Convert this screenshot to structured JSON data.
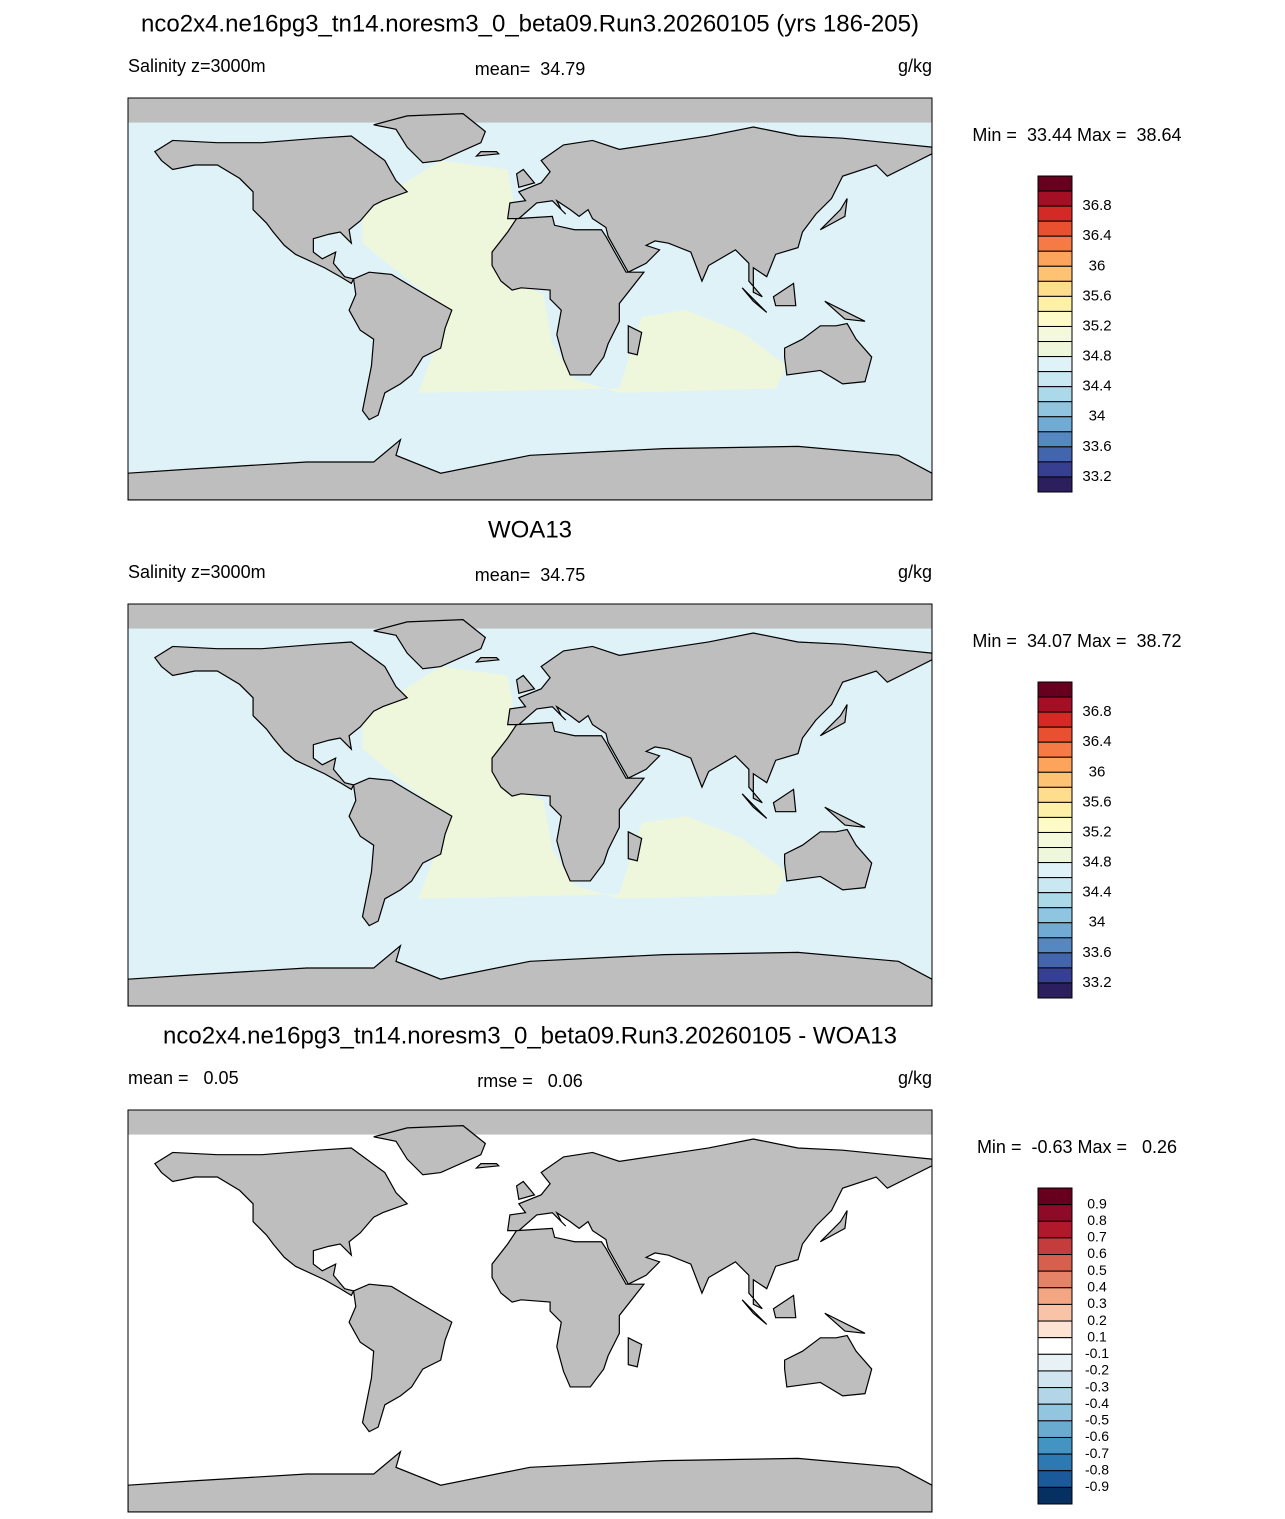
{
  "panels": [
    {
      "heading": "nco2x4.ne16pg3_tn14.noresm3_0_beta09.Run3.20260105 (yrs 186-205)",
      "left_label": "Salinity z=3000m",
      "center_label": "mean=  34.79",
      "units": "g/kg",
      "minmax": "Min =  33.44 Max =  38.64",
      "ocean_color": "#dff2f8",
      "region_color": "#eef7dc",
      "colorbar": {
        "colors": [
          "#67001f",
          "#a50f26",
          "#d42a26",
          "#e8502f",
          "#f57a45",
          "#fca45c",
          "#fdc372",
          "#fedd8c",
          "#fff0a8",
          "#fffbc8",
          "#f4f9dc",
          "#eef7dc",
          "#dff2f8",
          "#c9e8f2",
          "#abd9ea",
          "#8fc5e0",
          "#71abd4",
          "#5588c0",
          "#4265ab",
          "#363f90",
          "#2b1f5e"
        ],
        "labels": [
          36.8,
          36.4,
          36,
          35.6,
          35.2,
          34.8,
          34.4,
          34,
          33.6,
          33.2
        ]
      }
    },
    {
      "heading": "WOA13",
      "left_label": "Salinity z=3000m",
      "center_label": "mean=  34.75",
      "units": "g/kg",
      "minmax": "Min =  34.07 Max =  38.72",
      "ocean_color": "#dff2f8",
      "region_color": "#eef7dc",
      "colorbar": {
        "colors": [
          "#67001f",
          "#a50f26",
          "#d42a26",
          "#e8502f",
          "#f57a45",
          "#fca45c",
          "#fdc372",
          "#fedd8c",
          "#fff0a8",
          "#fffbc8",
          "#f4f9dc",
          "#eef7dc",
          "#dff2f8",
          "#c9e8f2",
          "#abd9ea",
          "#8fc5e0",
          "#71abd4",
          "#5588c0",
          "#4265ab",
          "#363f90",
          "#2b1f5e"
        ],
        "labels": [
          36.8,
          36.4,
          36,
          35.6,
          35.2,
          34.8,
          34.4,
          34,
          33.6,
          33.2
        ]
      }
    },
    {
      "heading": "nco2x4.ne16pg3_tn14.noresm3_0_beta09.Run3.20260105 - WOA13",
      "left_label": "mean =   0.05",
      "center_label": "rmse =   0.06",
      "units": "g/kg",
      "minmax": "Min =  -0.63 Max =   0.26",
      "ocean_color": "#ffffff",
      "colorbar": {
        "colors": [
          "#67001f",
          "#8e0a26",
          "#b2182b",
          "#c43c3c",
          "#d6604d",
          "#e58267",
          "#f4a582",
          "#f8c3a7",
          "#fde3d4",
          "#ffffff",
          "#e8f1f6",
          "#d1e5f0",
          "#b2d5e7",
          "#92c5de",
          "#6aacd0",
          "#4393c3",
          "#2c79b4",
          "#1b5a9a",
          "#053061"
        ],
        "labels": [
          0.9,
          0.8,
          0.7,
          0.6,
          0.5,
          0.4,
          0.3,
          0.2,
          0.1,
          -0.1,
          -0.2,
          -0.3,
          -0.4,
          -0.5,
          -0.6,
          -0.7,
          -0.8,
          -0.9
        ]
      }
    }
  ]
}
